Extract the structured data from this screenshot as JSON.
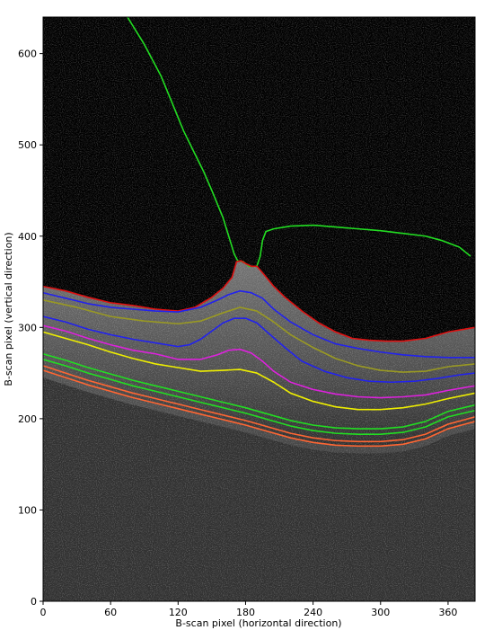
{
  "chart_data": {
    "type": "line",
    "title": "",
    "xlabel": "B-scan pixel (horizontal direction)",
    "ylabel": "B-scan pixel (vertical direction)",
    "xlim": [
      0,
      384
    ],
    "ylim": [
      0,
      640
    ],
    "xticks": [
      0,
      60,
      120,
      180,
      240,
      300,
      360
    ],
    "yticks": [
      0,
      100,
      200,
      300,
      400,
      500,
      600
    ],
    "grid": false,
    "background": "grayscale OCT B-scan image",
    "series": [
      {
        "color": "#22dd22",
        "x": [
          75,
          90,
          105,
          115,
          125,
          135,
          143,
          150,
          160,
          170,
          173,
          178,
          183,
          190,
          193,
          195,
          198,
          205,
          220,
          240,
          260,
          280,
          300,
          320,
          340,
          355,
          370,
          380
        ],
        "y": [
          640,
          610,
          575,
          545,
          515,
          490,
          470,
          450,
          420,
          380,
          373,
          372,
          367,
          367,
          378,
          395,
          405,
          408,
          411,
          412,
          410,
          408,
          406,
          403,
          400,
          395,
          388,
          378
        ]
      },
      {
        "color": "#dd1111",
        "x": [
          0,
          20,
          40,
          60,
          80,
          100,
          120,
          135,
          150,
          160,
          168,
          172,
          176,
          180,
          185,
          190,
          195,
          205,
          215,
          230,
          245,
          260,
          275,
          290,
          305,
          320,
          340,
          360,
          384
        ],
        "y": [
          345,
          340,
          333,
          327,
          324,
          320,
          318,
          322,
          333,
          343,
          355,
          372,
          373,
          370,
          367,
          367,
          360,
          345,
          333,
          318,
          305,
          295,
          288,
          286,
          285,
          285,
          288,
          295,
          300
        ]
      },
      {
        "color": "#2222ee",
        "x": [
          0,
          20,
          40,
          60,
          80,
          100,
          120,
          140,
          155,
          165,
          175,
          185,
          195,
          205,
          220,
          240,
          260,
          280,
          300,
          320,
          340,
          360,
          384
        ],
        "y": [
          338,
          332,
          326,
          322,
          320,
          318,
          317,
          322,
          330,
          336,
          340,
          338,
          332,
          320,
          306,
          292,
          282,
          277,
          273,
          270,
          268,
          267,
          267
        ]
      },
      {
        "color": "#999922",
        "x": [
          0,
          30,
          60,
          90,
          120,
          140,
          160,
          175,
          190,
          205,
          220,
          240,
          260,
          280,
          300,
          320,
          340,
          360,
          384
        ],
        "y": [
          330,
          322,
          312,
          307,
          304,
          307,
          316,
          322,
          318,
          306,
          292,
          278,
          266,
          258,
          253,
          251,
          252,
          257,
          260
        ]
      },
      {
        "color": "#2222ee",
        "x": [
          0,
          20,
          40,
          60,
          80,
          100,
          120,
          130,
          140,
          150,
          160,
          170,
          180,
          190,
          200,
          215,
          230,
          250,
          270,
          290,
          310,
          330,
          350,
          370,
          384
        ],
        "y": [
          312,
          306,
          298,
          292,
          287,
          283,
          279,
          281,
          287,
          296,
          305,
          310,
          310,
          305,
          294,
          278,
          263,
          252,
          245,
          241,
          240,
          241,
          244,
          248,
          250
        ]
      },
      {
        "color": "#dd22dd",
        "x": [
          0,
          20,
          40,
          60,
          80,
          100,
          120,
          140,
          155,
          165,
          175,
          185,
          195,
          205,
          220,
          240,
          260,
          280,
          300,
          320,
          340,
          360,
          384
        ],
        "y": [
          302,
          296,
          288,
          281,
          275,
          271,
          265,
          265,
          270,
          275,
          276,
          272,
          263,
          252,
          240,
          232,
          227,
          224,
          223,
          224,
          226,
          231,
          236
        ]
      },
      {
        "color": "#eeee00",
        "x": [
          0,
          20,
          40,
          60,
          80,
          100,
          120,
          140,
          160,
          175,
          190,
          205,
          220,
          240,
          260,
          280,
          300,
          320,
          340,
          360,
          384
        ],
        "y": [
          295,
          288,
          281,
          273,
          266,
          260,
          256,
          252,
          253,
          254,
          250,
          240,
          228,
          219,
          213,
          210,
          210,
          212,
          216,
          222,
          228
        ]
      },
      {
        "color": "#22dd22",
        "x": [
          0,
          20,
          40,
          60,
          80,
          100,
          120,
          140,
          160,
          180,
          200,
          220,
          240,
          260,
          280,
          300,
          320,
          340,
          360,
          384
        ],
        "y": [
          271,
          264,
          256,
          249,
          242,
          236,
          230,
          224,
          218,
          212,
          205,
          198,
          193,
          190,
          189,
          189,
          191,
          197,
          208,
          215
        ]
      },
      {
        "color": "#22dd22",
        "x": [
          0,
          20,
          40,
          60,
          80,
          100,
          120,
          140,
          160,
          180,
          200,
          220,
          240,
          260,
          280,
          300,
          320,
          340,
          360,
          384
        ],
        "y": [
          265,
          258,
          250,
          243,
          236,
          230,
          224,
          218,
          212,
          206,
          199,
          192,
          187,
          184,
          183,
          183,
          185,
          191,
          202,
          209
        ]
      },
      {
        "color": "#ff6633",
        "x": [
          0,
          20,
          40,
          60,
          80,
          100,
          120,
          140,
          160,
          180,
          200,
          220,
          240,
          260,
          280,
          300,
          320,
          340,
          360,
          384
        ],
        "y": [
          258,
          250,
          242,
          235,
          228,
          222,
          216,
          210,
          204,
          198,
          191,
          184,
          179,
          176,
          175,
          175,
          177,
          183,
          194,
          202
        ]
      },
      {
        "color": "#ff6633",
        "x": [
          0,
          20,
          40,
          60,
          80,
          100,
          120,
          140,
          160,
          180,
          200,
          220,
          240,
          260,
          280,
          300,
          320,
          340,
          360,
          384
        ],
        "y": [
          253,
          245,
          237,
          230,
          223,
          217,
          211,
          205,
          199,
          193,
          186,
          179,
          174,
          171,
          170,
          170,
          172,
          178,
          189,
          197
        ]
      }
    ]
  }
}
